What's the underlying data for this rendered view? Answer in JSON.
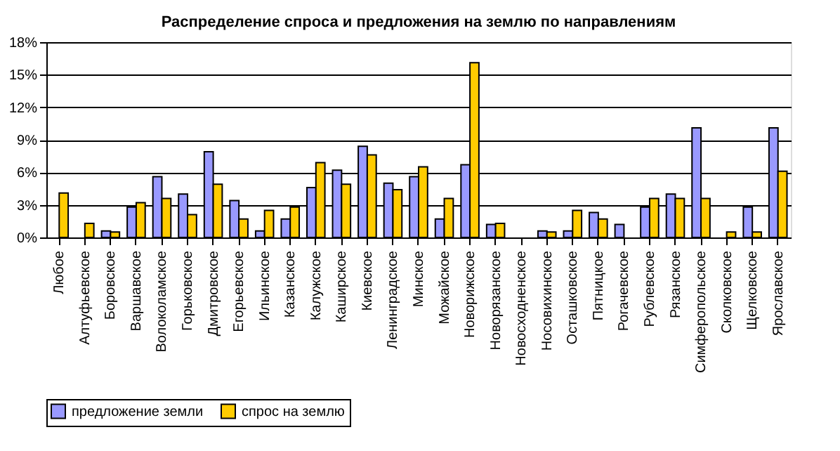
{
  "chart_data": {
    "type": "bar",
    "title": "Распределение спроса и предложения на землю по направлениям",
    "categories": [
      "Любое",
      "Алтуфьевское",
      "Боровское",
      "Варшавское",
      "Волоколамское",
      "Горьковское",
      "Дмитровское",
      "Егорьевское",
      "Ильинское",
      "Казанское",
      "Калужское",
      "Каширское",
      "Киевское",
      "Ленинградское",
      "Минское",
      "Можайское",
      "Новорижское",
      "Новорязанское",
      "Новосходненское",
      "Носовихинское",
      "Осташковское",
      "Пятницкое",
      "Рогачевское",
      "Рублевское",
      "Рязанское",
      "Симферопольское",
      "Сколковское",
      "Щелковское",
      "Ярославское"
    ],
    "series": [
      {
        "name": "предложение земли",
        "color": "#9999ff",
        "values": [
          0,
          0,
          0.6,
          2.8,
          5.6,
          4.0,
          7.9,
          3.4,
          0.6,
          1.7,
          4.6,
          6.2,
          8.4,
          5.0,
          5.6,
          1.7,
          6.7,
          1.2,
          0,
          0.6,
          0.6,
          2.3,
          1.2,
          2.8,
          4.0,
          10.1,
          0,
          2.8,
          10.1
        ]
      },
      {
        "name": "спрос на землю",
        "color": "#ffcc00",
        "values": [
          4.1,
          1.3,
          0.5,
          3.2,
          3.6,
          2.1,
          4.9,
          1.7,
          2.5,
          2.8,
          6.9,
          4.9,
          7.6,
          4.4,
          6.5,
          3.6,
          16.1,
          1.3,
          0,
          0.5,
          2.5,
          1.7,
          0,
          3.6,
          3.6,
          3.6,
          0.5,
          0.5,
          6.1
        ]
      }
    ],
    "ylim": [
      0,
      18
    ],
    "yticks": [
      {
        "value": 0,
        "label": "0%"
      },
      {
        "value": 3,
        "label": "3%"
      },
      {
        "value": 6,
        "label": "6%"
      },
      {
        "value": 9,
        "label": "9%"
      },
      {
        "value": 12,
        "label": "12%"
      },
      {
        "value": 15,
        "label": "15%"
      },
      {
        "value": 18,
        "label": "18%"
      }
    ],
    "grid": "y",
    "legend": "bottom"
  }
}
